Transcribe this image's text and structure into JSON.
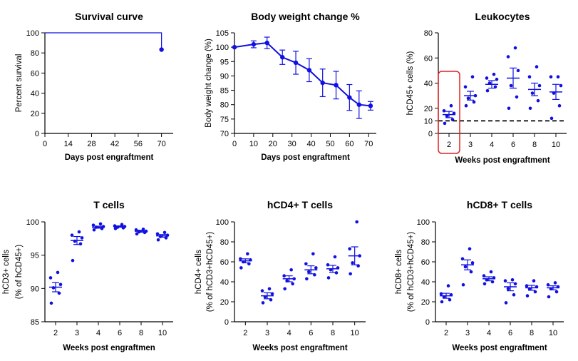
{
  "colors": {
    "series": "#1010e0",
    "axis": "#000000",
    "highlight": "#e02020"
  },
  "chart_data": [
    {
      "type": "line",
      "title": "Survival curve",
      "xlabel": "Days post engraftment",
      "ylabel": "Percent survival",
      "xlim": [
        0,
        77
      ],
      "ylim": [
        0,
        100
      ],
      "xticks": [
        0,
        14,
        28,
        42,
        56,
        70
      ],
      "yticks": [
        0,
        20,
        40,
        60,
        80,
        100
      ],
      "step": true,
      "series": [
        {
          "x": [
            0,
            70,
            70
          ],
          "y": [
            100,
            100,
            83.3
          ],
          "end_marker": [
            70,
            83.3
          ]
        }
      ]
    },
    {
      "type": "line",
      "title": "Body weight change %",
      "xlabel": "Days post engraftment",
      "ylabel": "Body weight change (%)",
      "xlim": [
        0,
        74
      ],
      "ylim": [
        70,
        105
      ],
      "xticks": [
        0,
        10,
        20,
        30,
        40,
        50,
        60,
        70
      ],
      "yticks": [
        70,
        75,
        80,
        85,
        90,
        95,
        100,
        105
      ],
      "series": [
        {
          "x": [
            0,
            10,
            17,
            25,
            32,
            39,
            46,
            53,
            60,
            65,
            71
          ],
          "y": [
            100,
            101,
            101.5,
            96.5,
            94.6,
            92,
            87.6,
            86.8,
            82.5,
            80,
            79.6
          ],
          "err": [
            0,
            1.2,
            2,
            2.5,
            4,
            4,
            4.8,
            4.8,
            4.5,
            4.8,
            1.5
          ]
        }
      ]
    },
    {
      "type": "scatter",
      "title": "Leukocytes",
      "xlabel": "Weeks post engraftment",
      "ylabel": "hCD45+ cells (%)",
      "categories": [
        "2",
        "3",
        "4",
        "6",
        "8",
        "10"
      ],
      "ylim": [
        0,
        80
      ],
      "yticks": [
        0,
        10,
        20,
        40,
        60,
        80
      ],
      "threshold": 10,
      "highlight_category": "2",
      "groups": [
        {
          "points": [
            8,
            11,
            14,
            16,
            18,
            22
          ],
          "mean": 15,
          "sem": 2.5
        },
        {
          "points": [
            22,
            25,
            28,
            30,
            37,
            45
          ],
          "mean": 30,
          "sem": 3.5
        },
        {
          "points": [
            34,
            37,
            40,
            43,
            44,
            47
          ],
          "mean": 39,
          "sem": 3
        },
        {
          "points": [
            20,
            29,
            38,
            50,
            61,
            68
          ],
          "mean": 44,
          "sem": 8
        },
        {
          "points": [
            20,
            26,
            32,
            38,
            45,
            53
          ],
          "mean": 35,
          "sem": 5
        },
        {
          "points": [
            12,
            22,
            32,
            38,
            45,
            45
          ],
          "mean": 33,
          "sem": 6
        }
      ]
    },
    {
      "type": "scatter",
      "title": "T cells",
      "xlabel": "Weeks post engraftmen",
      "ylabel": "hCD3+ cells",
      "ylabel2": "(% of hCD45+)",
      "categories": [
        "2",
        "3",
        "4",
        "6",
        "8",
        "10"
      ],
      "ylim": [
        85,
        100
      ],
      "yticks": [
        85,
        90,
        95,
        100
      ],
      "groups": [
        {
          "points": [
            87.8,
            89.3,
            90.1,
            90.6,
            91.6,
            92.4
          ],
          "mean": 90.2,
          "sem": 0.7
        },
        {
          "points": [
            94.2,
            96.7,
            97.1,
            97.6,
            98.0,
            98.5
          ],
          "mean": 97.2,
          "sem": 0.6
        },
        {
          "points": [
            98.8,
            99.0,
            99.2,
            99.3,
            99.5,
            99.7
          ],
          "mean": 99.2,
          "sem": 0.15
        },
        {
          "points": [
            99.0,
            99.1,
            99.2,
            99.3,
            99.4,
            99.6
          ],
          "mean": 99.3,
          "sem": 0.1
        },
        {
          "points": [
            98.2,
            98.4,
            98.5,
            98.6,
            98.8,
            98.9
          ],
          "mean": 98.6,
          "sem": 0.15
        },
        {
          "points": [
            97.3,
            97.6,
            97.8,
            98.0,
            98.2,
            98.4
          ],
          "mean": 97.9,
          "sem": 0.2
        }
      ]
    },
    {
      "type": "scatter",
      "title": "hCD4+ T cells",
      "xlabel": "Weeks post engraftment",
      "ylabel": "hCD4+ cells",
      "ylabel2": "(% of hCD3+hCD45+)",
      "categories": [
        "2",
        "3",
        "4",
        "6",
        "8",
        "10"
      ],
      "ylim": [
        0,
        100
      ],
      "yticks": [
        0,
        20,
        40,
        60,
        80,
        100
      ],
      "groups": [
        {
          "points": [
            54,
            58,
            60,
            62,
            63,
            68
          ],
          "mean": 61,
          "sem": 2
        },
        {
          "points": [
            19,
            22,
            25,
            28,
            31,
            33
          ],
          "mean": 26,
          "sem": 3
        },
        {
          "points": [
            33,
            38,
            41,
            43,
            46,
            52
          ],
          "mean": 43,
          "sem": 3
        },
        {
          "points": [
            43,
            47,
            50,
            54,
            58,
            68
          ],
          "mean": 52,
          "sem": 4
        },
        {
          "points": [
            44,
            49,
            52,
            54,
            57,
            65
          ],
          "mean": 53,
          "sem": 3.5
        },
        {
          "points": [
            48,
            56,
            59,
            66,
            73,
            100
          ],
          "mean": 66,
          "sem": 9
        }
      ]
    },
    {
      "type": "scatter",
      "title": "hCD8+ T cells",
      "xlabel": "Weeks post engraftment",
      "ylabel": "hCD8+ cells",
      "ylabel2": "(% of hCD3+hCD45+)",
      "categories": [
        "2",
        "3",
        "4",
        "6",
        "8",
        "10"
      ],
      "ylim": [
        0,
        100
      ],
      "yticks": [
        0,
        20,
        40,
        60,
        80,
        100
      ],
      "groups": [
        {
          "points": [
            20,
            22,
            25,
            27,
            28,
            36
          ],
          "mean": 26,
          "sem": 2.5
        },
        {
          "points": [
            37,
            50,
            55,
            59,
            63,
            73
          ],
          "mean": 57,
          "sem": 5
        },
        {
          "points": [
            38,
            40,
            42,
            44,
            46,
            50
          ],
          "mean": 43,
          "sem": 2
        },
        {
          "points": [
            19,
            27,
            33,
            38,
            41,
            42
          ],
          "mean": 35,
          "sem": 4
        },
        {
          "points": [
            26,
            30,
            33,
            35,
            36,
            41
          ],
          "mean": 34,
          "sem": 2.5
        },
        {
          "points": [
            25,
            30,
            33,
            35,
            37,
            39
          ],
          "mean": 34,
          "sem": 2
        }
      ]
    }
  ]
}
